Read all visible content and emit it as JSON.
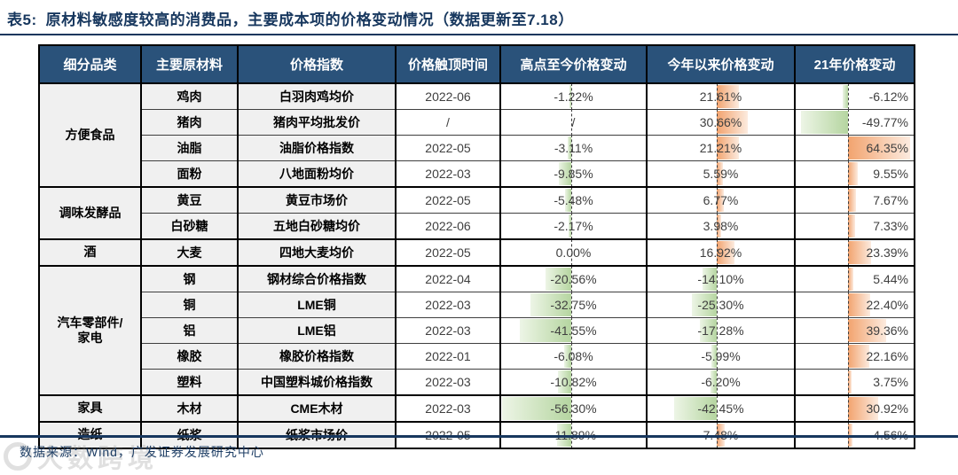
{
  "title": {
    "label": "表5:",
    "text": "原材料敏感度较高的消费品，主要成本项的价格变动情况（数据更新至7.18）"
  },
  "table": {
    "headers": [
      "细分品类",
      "主要原材料",
      "价格指数",
      "价格触顶时间",
      "高点至今价格变动",
      "今年以来价格变动",
      "21年价格变动"
    ],
    "rows": [
      {
        "group": "方便食品",
        "group_span": 4,
        "material": "鸡肉",
        "index_name": "白羽肉鸡均价",
        "peak_time": "2022-06",
        "peak_to_now": "-1.22%",
        "ytd": "21.61%",
        "y21": "-6.12%"
      },
      {
        "material": "猪肉",
        "index_name": "猪肉平均批发价",
        "peak_time": "/",
        "peak_to_now": "/",
        "ytd": "30.66%",
        "y21": "-49.77%"
      },
      {
        "material": "油脂",
        "index_name": "油脂价格指数",
        "peak_time": "2022-05",
        "peak_to_now": "-3.11%",
        "ytd": "21.21%",
        "y21": "64.35%"
      },
      {
        "material": "面粉",
        "index_name": "八地面粉均价",
        "peak_time": "2022-03",
        "peak_to_now": "-9.85%",
        "ytd": "5.59%",
        "y21": "9.55%"
      },
      {
        "group": "调味发酵品",
        "group_span": 2,
        "material": "黄豆",
        "index_name": "黄豆市场价",
        "peak_time": "2022-05",
        "peak_to_now": "-5.48%",
        "ytd": "6.77%",
        "y21": "7.67%"
      },
      {
        "material": "白砂糖",
        "index_name": "五地白砂糖均价",
        "peak_time": "2022-06",
        "peak_to_now": "-2.17%",
        "ytd": "3.98%",
        "y21": "7.33%"
      },
      {
        "group": "酒",
        "group_span": 1,
        "material": "大麦",
        "index_name": "四地大麦均价",
        "peak_time": "2022-05",
        "peak_to_now": "0.00%",
        "ytd": "16.92%",
        "y21": "23.39%"
      },
      {
        "group": "汽车零部件/家电",
        "group_span": 5,
        "material": "钢",
        "index_name": "钢材综合价格指数",
        "peak_time": "2022-04",
        "peak_to_now": "-20.56%",
        "ytd": "-14.10%",
        "y21": "5.44%"
      },
      {
        "material": "铜",
        "index_name": "LME铜",
        "peak_time": "2022-03",
        "peak_to_now": "-32.75%",
        "ytd": "-25.30%",
        "y21": "22.40%"
      },
      {
        "material": "铝",
        "index_name": "LME铝",
        "peak_time": "2022-03",
        "peak_to_now": "-41.55%",
        "ytd": "-17.28%",
        "y21": "39.36%"
      },
      {
        "material": "橡胶",
        "index_name": "橡胶价格指数",
        "peak_time": "2022-01",
        "peak_to_now": "-6.08%",
        "ytd": "-5.99%",
        "y21": "22.16%"
      },
      {
        "material": "塑料",
        "index_name": "中国塑料城价格指数",
        "peak_time": "2022-03",
        "peak_to_now": "-10.82%",
        "ytd": "-6.20%",
        "y21": "3.75%"
      },
      {
        "group": "家具",
        "group_span": 1,
        "material": "木材",
        "index_name": "CME木材",
        "peak_time": "2022-03",
        "peak_to_now": "-56.30%",
        "ytd": "-42.45%",
        "y21": "30.92%"
      },
      {
        "group": "造纸",
        "group_span": 1,
        "material": "纸浆",
        "index_name": "纸浆市场价",
        "peak_time": "2022-05",
        "peak_to_now": "-11.89%",
        "ytd": "7.48%",
        "y21": "4.56%"
      }
    ]
  },
  "footer": {
    "source": "数据来源：Wind，广发证券发展研究中心"
  },
  "watermark": {
    "text": "大数跨境"
  },
  "colors": {
    "header_bg": "#2a527a",
    "title_navy": "#17375e",
    "bar_positive": "#f2a36e",
    "bar_positive_light": "#fcebdf",
    "bar_negative": "#b5d5a0",
    "bar_negative_light": "#edf5e6"
  }
}
